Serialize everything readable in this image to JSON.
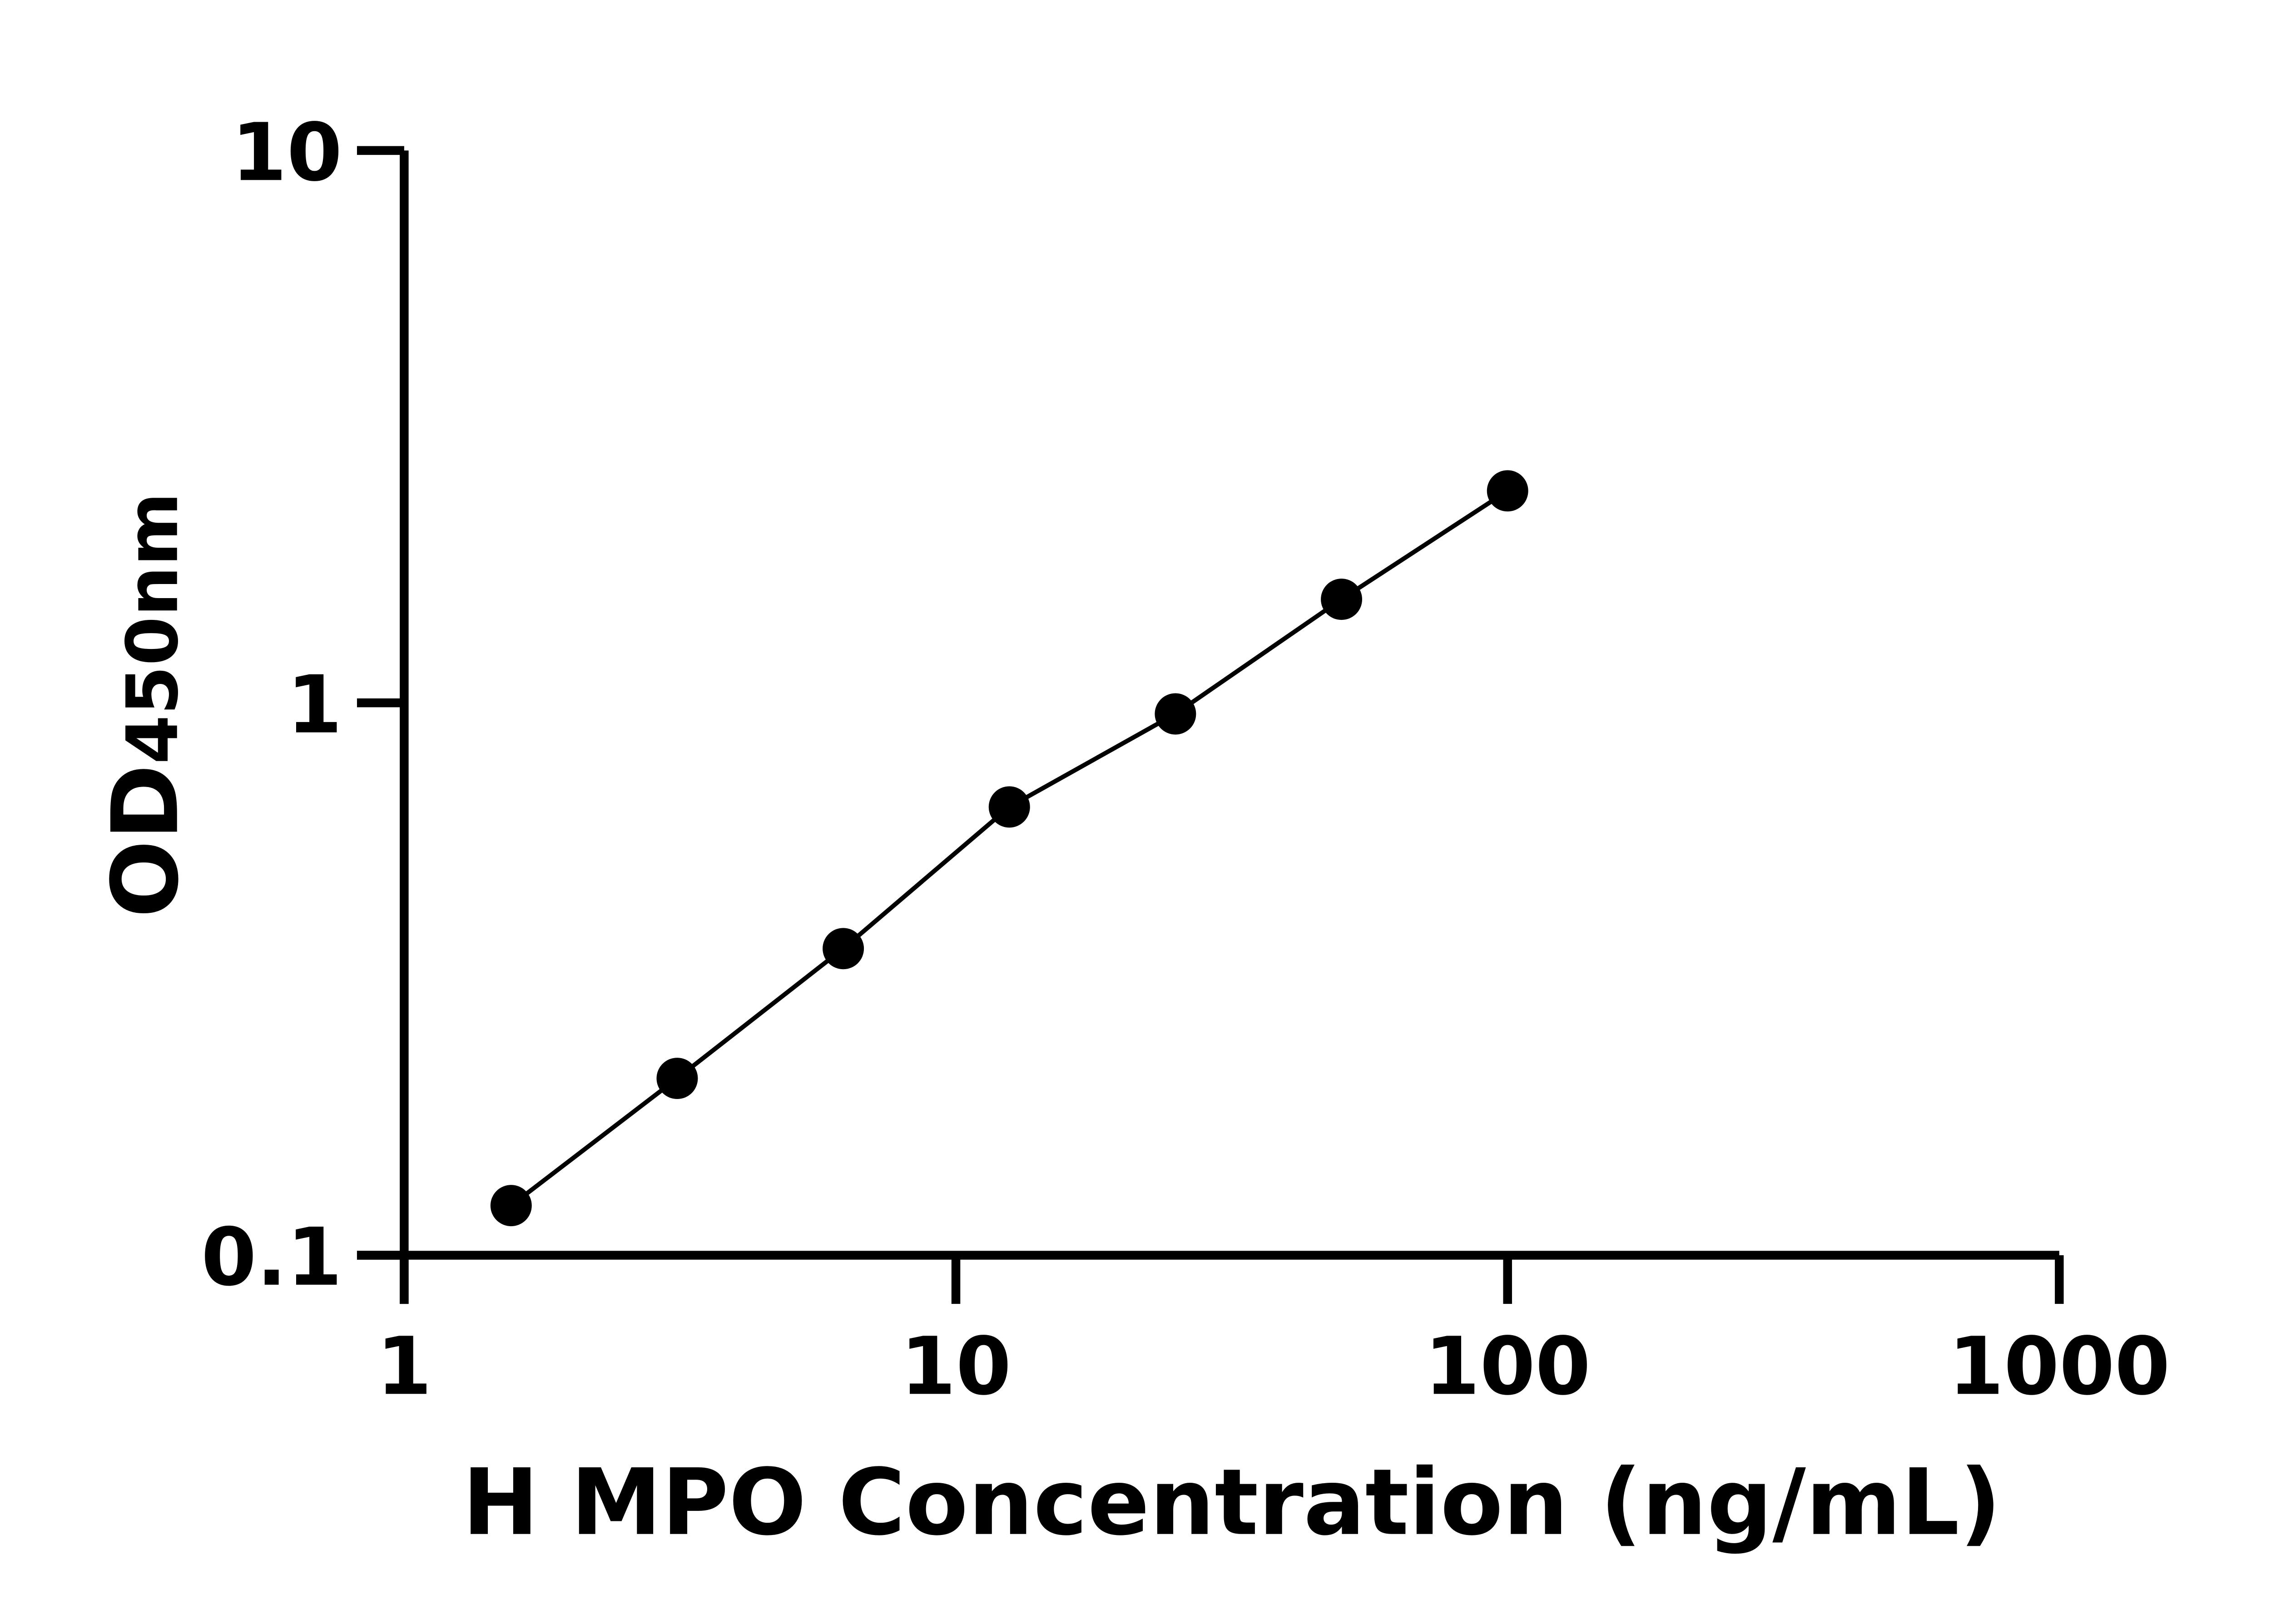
{
  "chart_data": {
    "type": "line",
    "title": "",
    "xlabel": "H MPO Concentration (ng/mL)",
    "ylabel": "OD450nm",
    "ylabel_main": "OD",
    "ylabel_sub": "450nm",
    "xscale": "log",
    "yscale": "log",
    "xlim": [
      1,
      1000
    ],
    "ylim": [
      0.1,
      10
    ],
    "xticks": [
      "1",
      "10",
      "100",
      "1000"
    ],
    "yticks": [
      "0.1",
      "1",
      "10"
    ],
    "grid": false,
    "marker_color": "#000000",
    "line_color": "#000000",
    "series": [
      {
        "x": [
          1.5625,
          3.125,
          6.25,
          12.5,
          25,
          50,
          100
        ],
        "y": [
          0.123,
          0.209,
          0.359,
          0.648,
          0.955,
          1.54,
          2.42
        ]
      }
    ]
  }
}
